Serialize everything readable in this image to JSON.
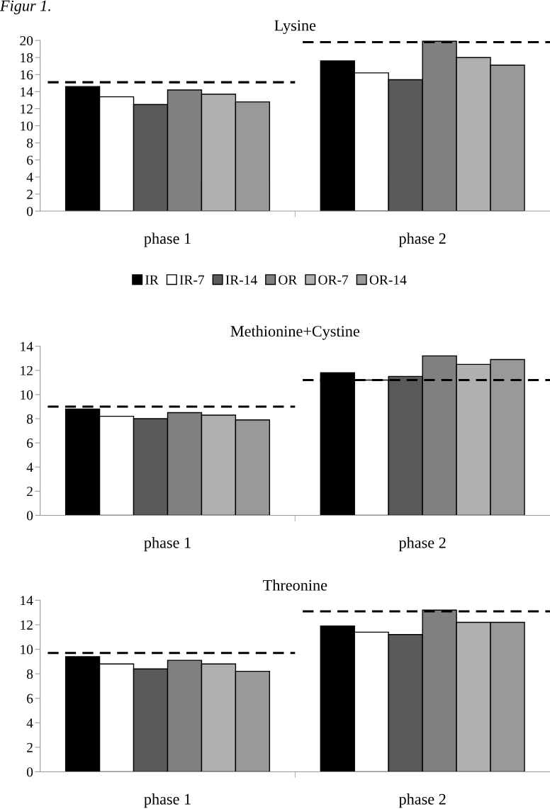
{
  "chart_data": [
    {
      "type": "bar",
      "title": "Lysine",
      "annotations": [
        "Figur 1."
      ],
      "categories": [
        "phase 1",
        "phase 2"
      ],
      "ylim": [
        0,
        20
      ],
      "yticks": [
        0,
        2,
        4,
        6,
        8,
        10,
        12,
        14,
        16,
        18,
        20
      ],
      "grid": false,
      "legend": "bottom",
      "series": [
        {
          "name": "IR",
          "color": "#000000",
          "values": [
            14.6,
            17.6
          ]
        },
        {
          "name": "IR-7",
          "color": "#ffffff",
          "values": [
            13.4,
            16.2
          ]
        },
        {
          "name": "IR-14",
          "color": "#5a5a5a",
          "values": [
            12.5,
            15.4
          ]
        },
        {
          "name": "OR",
          "color": "#808080",
          "values": [
            14.2,
            19.9
          ]
        },
        {
          "name": "OR-7",
          "color": "#b0b0b0",
          "values": [
            13.7,
            18.0
          ]
        },
        {
          "name": "OR-14",
          "color": "#999999",
          "values": [
            12.8,
            17.1
          ]
        }
      ],
      "ref_lines": [
        {
          "axis": "y",
          "value": 15.1,
          "line_style": "dashed",
          "color": "#000000"
        },
        {
          "axis": "y",
          "value": 19.8,
          "line_style": "dashed",
          "color": "#000000"
        }
      ]
    },
    {
      "type": "bar",
      "title": "Methionine+Cystine",
      "categories": [
        "phase 1",
        "phase 2"
      ],
      "ylim": [
        0,
        14
      ],
      "yticks": [
        0,
        2,
        4,
        6,
        8,
        10,
        12,
        14
      ],
      "grid": false,
      "series": [
        {
          "color": "#000000",
          "values": [
            8.8,
            11.8
          ]
        },
        {
          "color": "#ffffff",
          "values": [
            8.2,
            11.2
          ]
        },
        {
          "color": "#5a5a5a",
          "values": [
            8.0,
            11.5
          ]
        },
        {
          "color": "#808080",
          "values": [
            8.5,
            13.2
          ]
        },
        {
          "color": "#b0b0b0",
          "values": [
            8.3,
            12.5
          ]
        },
        {
          "color": "#999999",
          "values": [
            7.9,
            12.9
          ]
        }
      ],
      "ref_lines": [
        {
          "axis": "y",
          "value": 9.0,
          "line_style": "dashed",
          "color": "#000000"
        },
        {
          "axis": "y",
          "value": 11.2,
          "line_style": "dashed",
          "color": "#000000"
        }
      ]
    },
    {
      "type": "bar",
      "title": "Threonine",
      "categories": [
        "phase 1",
        "phase 2"
      ],
      "ylim": [
        0,
        14
      ],
      "yticks": [
        0,
        2,
        4,
        6,
        8,
        10,
        12,
        14
      ],
      "grid": false,
      "series": [
        {
          "color": "#000000",
          "values": [
            9.4,
            11.9
          ]
        },
        {
          "color": "#ffffff",
          "values": [
            8.8,
            11.4
          ]
        },
        {
          "color": "#5a5a5a",
          "values": [
            8.4,
            11.2
          ]
        },
        {
          "color": "#808080",
          "values": [
            9.1,
            13.2
          ]
        },
        {
          "color": "#b0b0b0",
          "values": [
            8.8,
            12.2
          ]
        },
        {
          "color": "#999999",
          "values": [
            8.2,
            12.2
          ]
        }
      ],
      "ref_lines": [
        {
          "axis": "y",
          "value": 9.7,
          "line_style": "dashed",
          "color": "#000000"
        },
        {
          "axis": "y",
          "value": 13.1,
          "line_style": "dashed",
          "color": "#000000"
        }
      ]
    }
  ]
}
